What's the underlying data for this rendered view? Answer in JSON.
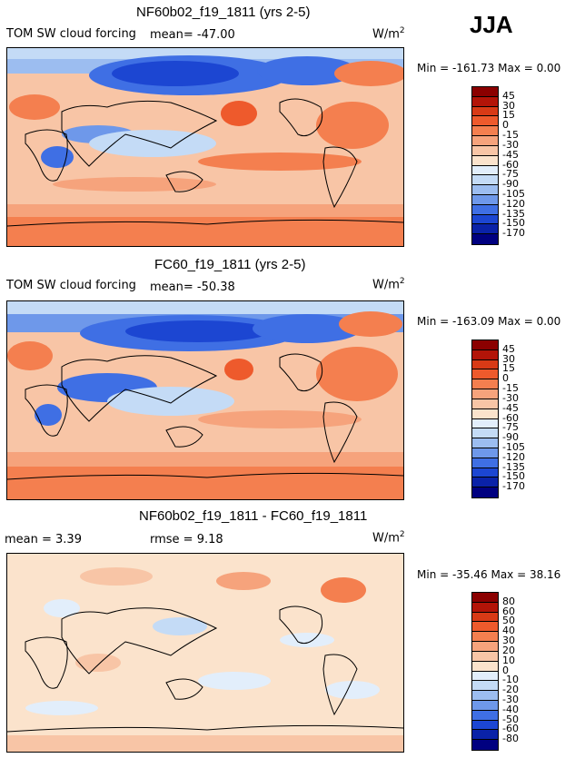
{
  "season": "JJA",
  "units_main": "W/m",
  "units_sup": "2",
  "panels": [
    {
      "title": "NF60b02_f19_1811 (yrs 2-5)",
      "variable": "TOM SW cloud forcing",
      "stat": "mean=  -47.00",
      "minmax": "Min = -161.73  Max =    0.00",
      "colorbar": {
        "levels": [
          "45",
          "30",
          "15",
          "0",
          "-15",
          "-30",
          "-45",
          "-60",
          "-75",
          "-90",
          "-105",
          "-120",
          "-135",
          "-150",
          "-170"
        ],
        "colors": [
          "#8b0000",
          "#b31408",
          "#d83a16",
          "#ee5a2c",
          "#f47f4f",
          "#f6a37c",
          "#f8c5a6",
          "#fbe3cc",
          "#e2eefb",
          "#c4dbf6",
          "#9cbdf0",
          "#6e98ea",
          "#3f6fe4",
          "#1c46d2",
          "#0a22a8",
          "#000080"
        ]
      }
    },
    {
      "title": "FC60_f19_1811 (yrs 2-5)",
      "variable": "TOM SW cloud forcing",
      "stat": "mean=  -50.38",
      "minmax": "Min = -163.09  Max =    0.00",
      "colorbar": {
        "levels": [
          "45",
          "30",
          "15",
          "0",
          "-15",
          "-30",
          "-45",
          "-60",
          "-75",
          "-90",
          "-105",
          "-120",
          "-135",
          "-150",
          "-170"
        ],
        "colors": [
          "#8b0000",
          "#b31408",
          "#d83a16",
          "#ee5a2c",
          "#f47f4f",
          "#f6a37c",
          "#f8c5a6",
          "#fbe3cc",
          "#e2eefb",
          "#c4dbf6",
          "#9cbdf0",
          "#6e98ea",
          "#3f6fe4",
          "#1c46d2",
          "#0a22a8",
          "#000080"
        ]
      }
    },
    {
      "title": "NF60b02_f19_1811 - FC60_f19_1811",
      "stat_mean": "mean =     3.39",
      "stat_rmse": "rmse =    9.18",
      "minmax": "Min = -35.46  Max =  38.16",
      "colorbar": {
        "levels": [
          "80",
          "60",
          "50",
          "40",
          "30",
          "20",
          "10",
          "0",
          "-10",
          "-20",
          "-30",
          "-40",
          "-50",
          "-60",
          "-80"
        ],
        "colors": [
          "#8b0000",
          "#b31408",
          "#d83a16",
          "#ee5a2c",
          "#f47f4f",
          "#f6a37c",
          "#f8c5a6",
          "#fbe3cc",
          "#e2eefb",
          "#c4dbf6",
          "#9cbdf0",
          "#6e98ea",
          "#3f6fe4",
          "#1c46d2",
          "#0a22a8",
          "#000080"
        ]
      }
    }
  ],
  "chart_data": [
    {
      "type": "heatmap",
      "title": "NF60b02_f19_1811 (yrs 2-5)",
      "field": "TOM SW cloud forcing",
      "units": "W/m2",
      "mean": -47.0,
      "min": -161.73,
      "max": 0.0,
      "contour_levels": [
        45,
        30,
        15,
        0,
        -15,
        -30,
        -45,
        -60,
        -75,
        -90,
        -105,
        -120,
        -135,
        -150,
        -170
      ]
    },
    {
      "type": "heatmap",
      "title": "FC60_f19_1811 (yrs 2-5)",
      "field": "TOM SW cloud forcing",
      "units": "W/m2",
      "mean": -50.38,
      "min": -163.09,
      "max": 0.0,
      "contour_levels": [
        45,
        30,
        15,
        0,
        -15,
        -30,
        -45,
        -60,
        -75,
        -90,
        -105,
        -120,
        -135,
        -150,
        -170
      ]
    },
    {
      "type": "heatmap",
      "title": "NF60b02_f19_1811 - FC60_f19_1811",
      "units": "W/m2",
      "mean": 3.39,
      "rmse": 9.18,
      "min": -35.46,
      "max": 38.16,
      "contour_levels": [
        80,
        60,
        50,
        40,
        30,
        20,
        10,
        0,
        -10,
        -20,
        -30,
        -40,
        -50,
        -60,
        -80
      ]
    }
  ]
}
